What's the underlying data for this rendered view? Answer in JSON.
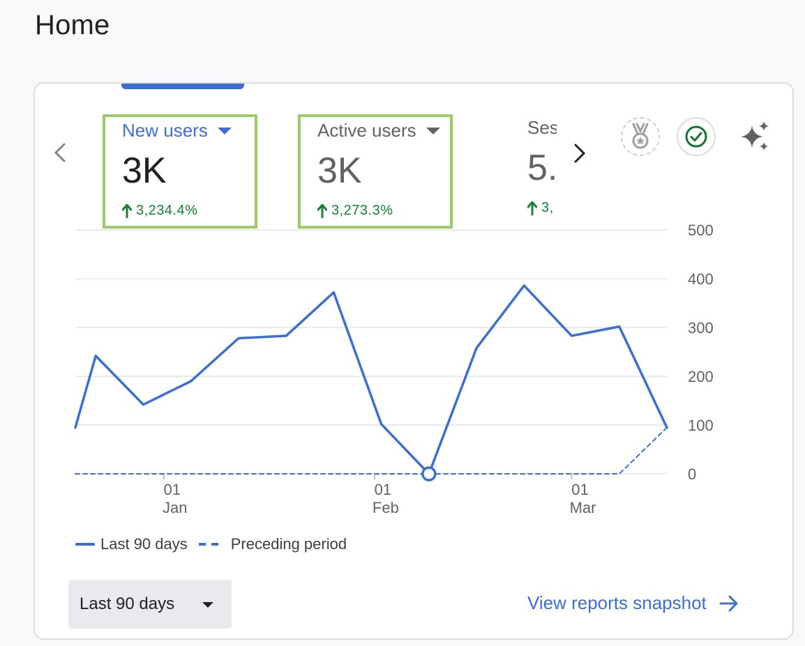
{
  "page": {
    "title": "Home"
  },
  "metrics": [
    {
      "label": "New users",
      "value": "3K",
      "change": "3,234.4%"
    },
    {
      "label": "Active users",
      "value": "3K",
      "change": "3,273.3%"
    },
    {
      "label": "Ses",
      "value": "5.",
      "change": "3,"
    }
  ],
  "icons": {
    "medal": "medal-icon",
    "check": "check-circle-icon",
    "sparkle": "sparkle-icon",
    "prev": "chevron-left-icon",
    "next": "chevron-right-icon"
  },
  "colors": {
    "accent": "#3c6fd1",
    "positive": "#188038",
    "highlight": "#9ccc65"
  },
  "chart_data": {
    "type": "line",
    "ylim": [
      0,
      500
    ],
    "y_ticks": [
      "0",
      "100",
      "200",
      "300",
      "400",
      "500"
    ],
    "x_ticks": [
      {
        "day": "01",
        "month": "Jan",
        "date": "2024-01-01"
      },
      {
        "day": "01",
        "month": "Feb",
        "date": "2024-02-01"
      },
      {
        "day": "01",
        "month": "Mar",
        "date": "2024-03-01"
      }
    ],
    "grid": true,
    "legend_position": "bottom-left",
    "series": [
      {
        "name": "Last 90 days",
        "style": "solid",
        "points": [
          {
            "date": "2023-12-19",
            "value": 95
          },
          {
            "date": "2023-12-22",
            "value": 242
          },
          {
            "date": "2023-12-29",
            "value": 142
          },
          {
            "date": "2024-01-05",
            "value": 190
          },
          {
            "date": "2024-01-12",
            "value": 278
          },
          {
            "date": "2024-01-19",
            "value": 283
          },
          {
            "date": "2024-01-26",
            "value": 372
          },
          {
            "date": "2024-02-02",
            "value": 102
          },
          {
            "date": "2024-02-09",
            "value": 0
          },
          {
            "date": "2024-02-16",
            "value": 258
          },
          {
            "date": "2024-02-23",
            "value": 386
          },
          {
            "date": "2024-03-01",
            "value": 283
          },
          {
            "date": "2024-03-08",
            "value": 302
          },
          {
            "date": "2024-03-15",
            "value": 95
          }
        ]
      },
      {
        "name": "Preceding period",
        "style": "dashed",
        "points": [
          {
            "date": "2023-12-19",
            "value": 0
          },
          {
            "date": "2024-03-08",
            "value": 0
          },
          {
            "date": "2024-03-15",
            "value": 95
          }
        ]
      }
    ],
    "highlight_point": {
      "date": "2024-02-09",
      "value": 0
    }
  },
  "controls": {
    "date_range": "Last 90 days",
    "snapshot_link": "View reports snapshot"
  }
}
